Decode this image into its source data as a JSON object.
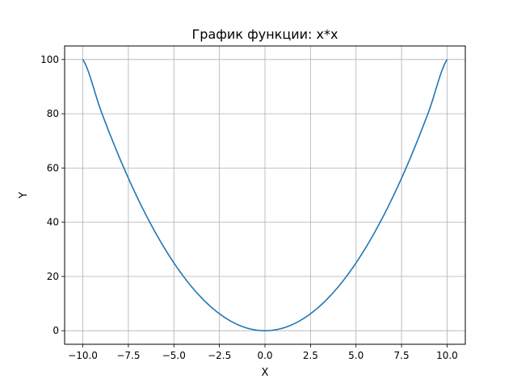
{
  "chart_data": {
    "type": "line",
    "title": "График функции: x*x",
    "xlabel": "X",
    "ylabel": "Y",
    "xlim": [
      -11,
      11
    ],
    "ylim": [
      -5,
      105
    ],
    "grid": true,
    "x_ticks": [
      -10.0,
      -7.5,
      -5.0,
      -2.5,
      0.0,
      2.5,
      5.0,
      7.5,
      10.0
    ],
    "x_tick_labels": [
      "−10.0",
      "−7.5",
      "−5.0",
      "−2.5",
      "0.0",
      "2.5",
      "5.0",
      "7.5",
      "10.0"
    ],
    "y_ticks": [
      0,
      20,
      40,
      60,
      80,
      100
    ],
    "y_tick_labels": [
      "0",
      "20",
      "40",
      "60",
      "80",
      "100"
    ],
    "series": [
      {
        "color": "#1f77b4",
        "x": [
          -10,
          -9,
          -8,
          -7,
          -6,
          -5,
          -4,
          -3,
          -2,
          -1,
          0,
          1,
          2,
          3,
          4,
          5,
          6,
          7,
          8,
          9,
          10
        ],
        "y": [
          100,
          81,
          64,
          49,
          36,
          25,
          16,
          9,
          4,
          1,
          0,
          1,
          4,
          9,
          16,
          25,
          36,
          49,
          64,
          81,
          100
        ]
      }
    ]
  }
}
